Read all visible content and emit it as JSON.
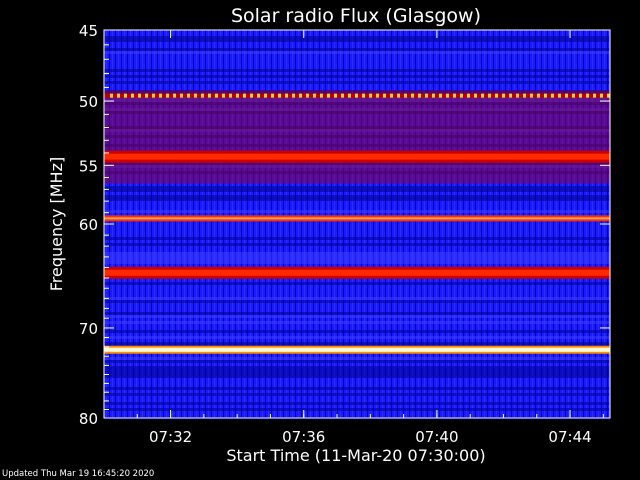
{
  "chart_data": {
    "type": "heatmap",
    "title": "Solar radio Flux (Glasgow)",
    "xlabel": "Start Time (11-Mar-20 07:30:00)",
    "ylabel": "Frequency [MHz]",
    "x_range_minutes": [
      0,
      15.2
    ],
    "y_range_mhz": [
      45,
      80
    ],
    "y_scale": "log",
    "x_ticks": [
      {
        "minute": 2,
        "label": "07:32"
      },
      {
        "minute": 6,
        "label": "07:36"
      },
      {
        "minute": 10,
        "label": "07:40"
      },
      {
        "minute": 14,
        "label": "07:44"
      }
    ],
    "y_ticks": [
      45,
      50,
      55,
      60,
      70,
      80
    ],
    "colormap": [
      "#00008b",
      "#1e1eff",
      "#ff0000",
      "#ffff60",
      "#ffffff"
    ],
    "bands": [
      {
        "mhz": 49.6,
        "level": "dotted-yellow"
      },
      {
        "mhz": 54.3,
        "level": "red"
      },
      {
        "mhz": 59.5,
        "level": "orange"
      },
      {
        "mhz": 64.5,
        "level": "red"
      },
      {
        "mhz": 72.3,
        "level": "white"
      }
    ]
  },
  "footer": "Updated Thu Mar 19 16:45:20 2020"
}
